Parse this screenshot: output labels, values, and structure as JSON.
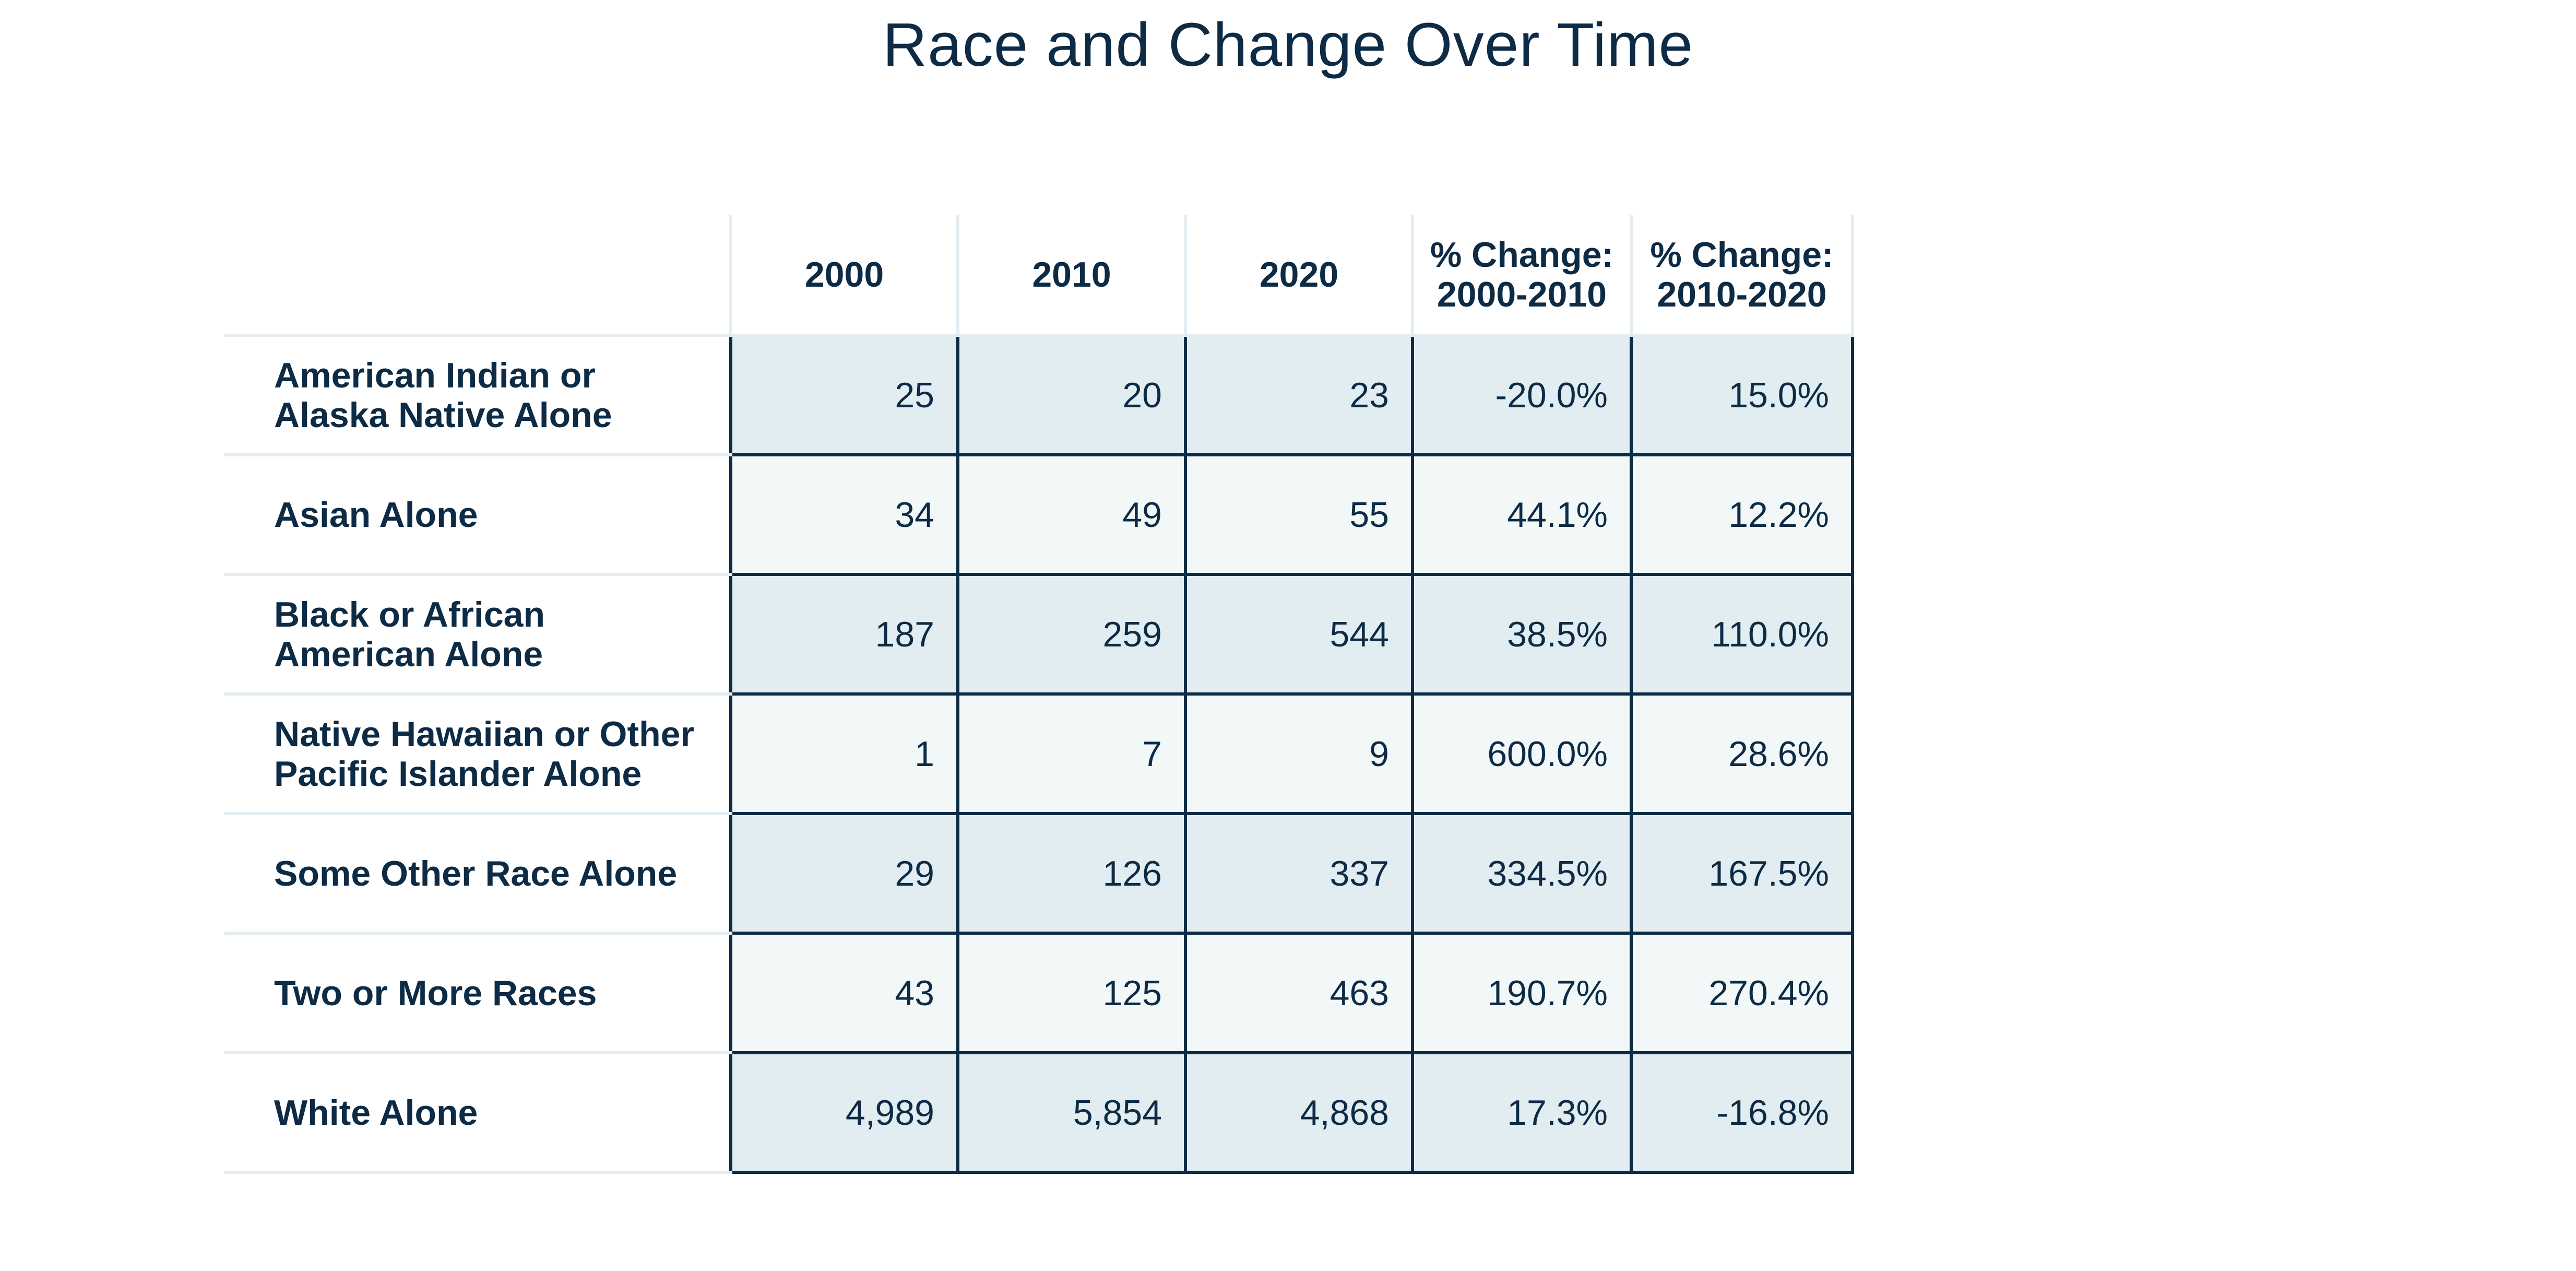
{
  "chart_data": {
    "type": "table",
    "title": "Race and Change Over Time",
    "columns": [
      "2000",
      "2010",
      "2020",
      "% Change:\n2000-2010",
      "% Change:\n2010-2020"
    ],
    "rows": [
      {
        "label": "American Indian or\nAlaska Native Alone",
        "values": [
          "25",
          "20",
          "23",
          "-20.0%",
          "15.0%"
        ]
      },
      {
        "label": "Asian Alone",
        "values": [
          "34",
          "49",
          "55",
          "44.1%",
          "12.2%"
        ]
      },
      {
        "label": "Black or African\n American Alone",
        "values": [
          "187",
          "259",
          "544",
          "38.5%",
          "110.0%"
        ]
      },
      {
        "label": "Native Hawaiian or Other\nPacific Islander Alone",
        "values": [
          "1",
          "7",
          "9",
          "600.0%",
          "28.6%"
        ]
      },
      {
        "label": "Some Other Race Alone",
        "values": [
          "29",
          "126",
          "337",
          "334.5%",
          "167.5%"
        ]
      },
      {
        "label": "Two or More Races",
        "values": [
          "43",
          "125",
          "463",
          "190.7%",
          "270.4%"
        ]
      },
      {
        "label": "White Alone",
        "values": [
          "4,989",
          "5,854",
          "4,868",
          "17.3%",
          "-16.8%"
        ]
      }
    ]
  },
  "colors": {
    "text": "#0d2b45",
    "cell_border": "#0d2b45",
    "header_rule": "#e3eef2",
    "row_shade_a": "#e1edf1",
    "row_shade_b": "#f2f7f8"
  }
}
